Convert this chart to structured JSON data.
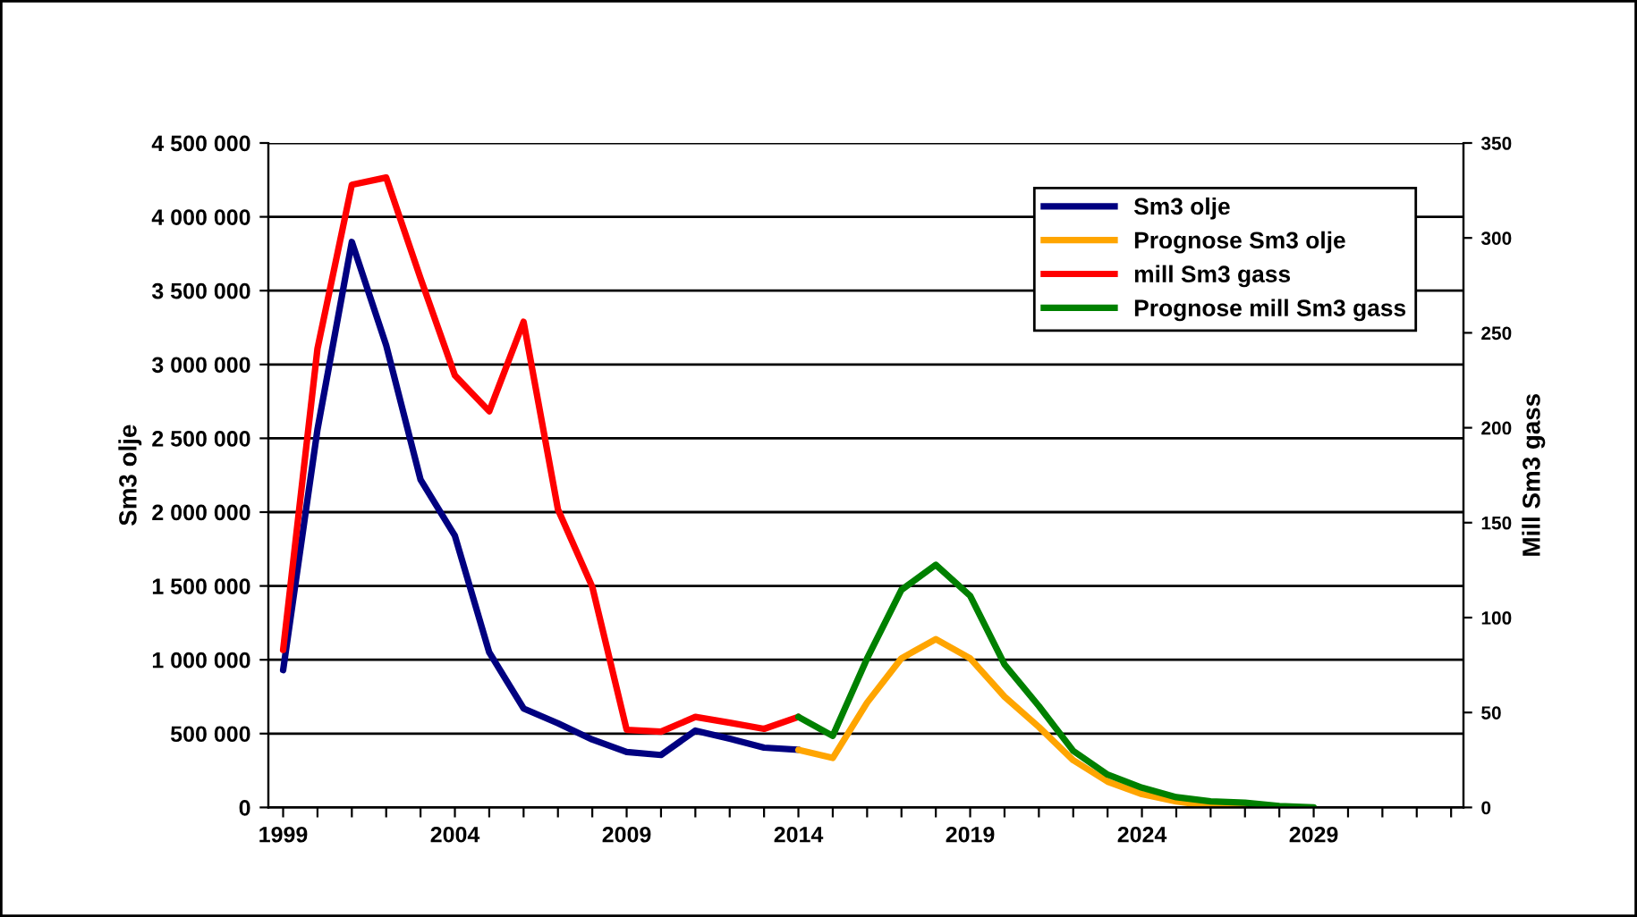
{
  "chart_data": {
    "type": "line",
    "ylabel": "Sm3 olje",
    "y2label": "Mill Sm3 gass",
    "legend": "top right",
    "grid": "y",
    "marker": "none",
    "line_style": "solid",
    "xlim": [
      1998.57,
      2033.36
    ],
    "xticks": [
      1999,
      {
        "value": 2000,
        "label": null
      },
      {
        "value": 2001,
        "label": null
      },
      {
        "value": 2002,
        "label": null
      },
      {
        "value": 2003,
        "label": null
      },
      2004,
      {
        "value": 2005,
        "label": null
      },
      {
        "value": 2006,
        "label": null
      },
      {
        "value": 2007,
        "label": null
      },
      {
        "value": 2008,
        "label": null
      },
      2009,
      {
        "value": 2010,
        "label": null
      },
      {
        "value": 2011,
        "label": null
      },
      {
        "value": 2012,
        "label": null
      },
      {
        "value": 2013,
        "label": null
      },
      2014,
      {
        "value": 2015,
        "label": null
      },
      {
        "value": 2016,
        "label": null
      },
      {
        "value": 2017,
        "label": null
      },
      {
        "value": 2018,
        "label": null
      },
      2019,
      {
        "value": 2020,
        "label": null
      },
      {
        "value": 2021,
        "label": null
      },
      {
        "value": 2022,
        "label": null
      },
      {
        "value": 2023,
        "label": null
      },
      2024,
      {
        "value": 2025,
        "label": null
      },
      {
        "value": 2026,
        "label": null
      },
      {
        "value": 2027,
        "label": null
      },
      {
        "value": 2028,
        "label": null
      },
      2029,
      {
        "value": 2030,
        "label": null
      },
      {
        "value": 2031,
        "label": null
      },
      {
        "value": 2032,
        "label": null
      },
      {
        "value": 2033,
        "label": null
      }
    ],
    "ylim": [
      0,
      4500000
    ],
    "yticks": [
      0,
      {
        "value": 500000,
        "label": "500 000"
      },
      {
        "value": 1000000,
        "label": "1 000 000"
      },
      {
        "value": 1500000,
        "label": "1 500 000"
      },
      {
        "value": 2000000,
        "label": "2 000 000"
      },
      {
        "value": 2500000,
        "label": "2 500 000"
      },
      {
        "value": 3000000,
        "label": "3 000 000"
      },
      {
        "value": 3500000,
        "label": "3 500 000"
      },
      {
        "value": 4000000,
        "label": "4 000 000"
      },
      {
        "value": 4500000,
        "label": "4 500 000"
      }
    ],
    "y2lim": [
      0,
      350
    ],
    "y2ticks": [
      0,
      50,
      100,
      150,
      200,
      250,
      300,
      350
    ],
    "series": [
      {
        "name": "Sm3 olje",
        "color": "#000080",
        "x": [
          1999,
          2000,
          2001,
          2002,
          2003,
          2004,
          2005,
          2006,
          2007,
          2008,
          2009,
          2010,
          2011,
          2012,
          2013,
          2014
        ],
        "values": [
          930000,
          2560000,
          3830000,
          3130000,
          2220000,
          1840000,
          1050000,
          670000,
          570000,
          460000,
          375000,
          355000,
          520000,
          465000,
          405000,
          390000
        ]
      },
      {
        "name": "Prognose Sm3 olje",
        "color": "#ffa500",
        "x": [
          2014,
          2015,
          2016,
          2017,
          2018,
          2019,
          2020,
          2021,
          2022,
          2023,
          2024,
          2025,
          2026,
          2027
        ],
        "values": [
          390000,
          335000,
          710000,
          1010000,
          1140000,
          1010000,
          750000,
          545000,
          320000,
          175000,
          90000,
          40000,
          10000,
          0
        ]
      },
      {
        "name": "mill Sm3 gass",
        "color": "#ff0000",
        "axis": "y2",
        "x": [
          1999,
          2000,
          2001,
          2002,
          2003,
          2004,
          2005,
          2006,
          2007,
          2008,
          2009,
          2010,
          2011,
          2012,
          2013,
          2014
        ],
        "values": [
          83,
          241.7,
          328,
          331.8,
          278.7,
          227.6,
          208.7,
          255.8,
          157,
          116.2,
          40.9,
          39.9,
          47.7,
          44.6,
          41.4,
          47.7
        ]
      },
      {
        "name": "Prognose mill Sm3 gass",
        "color": "#008000",
        "axis": "y2",
        "x": [
          2014,
          2015,
          2016,
          2017,
          2018,
          2019,
          2020,
          2021,
          2022,
          2023,
          2024,
          2025,
          2026,
          2027,
          2028,
          2029
        ],
        "values": [
          47.7,
          37.7,
          78.5,
          114.6,
          127.8,
          111.5,
          75.3,
          53.4,
          29.8,
          17.3,
          10.4,
          5.4,
          3.2,
          2.5,
          0.7,
          0
        ]
      }
    ]
  }
}
